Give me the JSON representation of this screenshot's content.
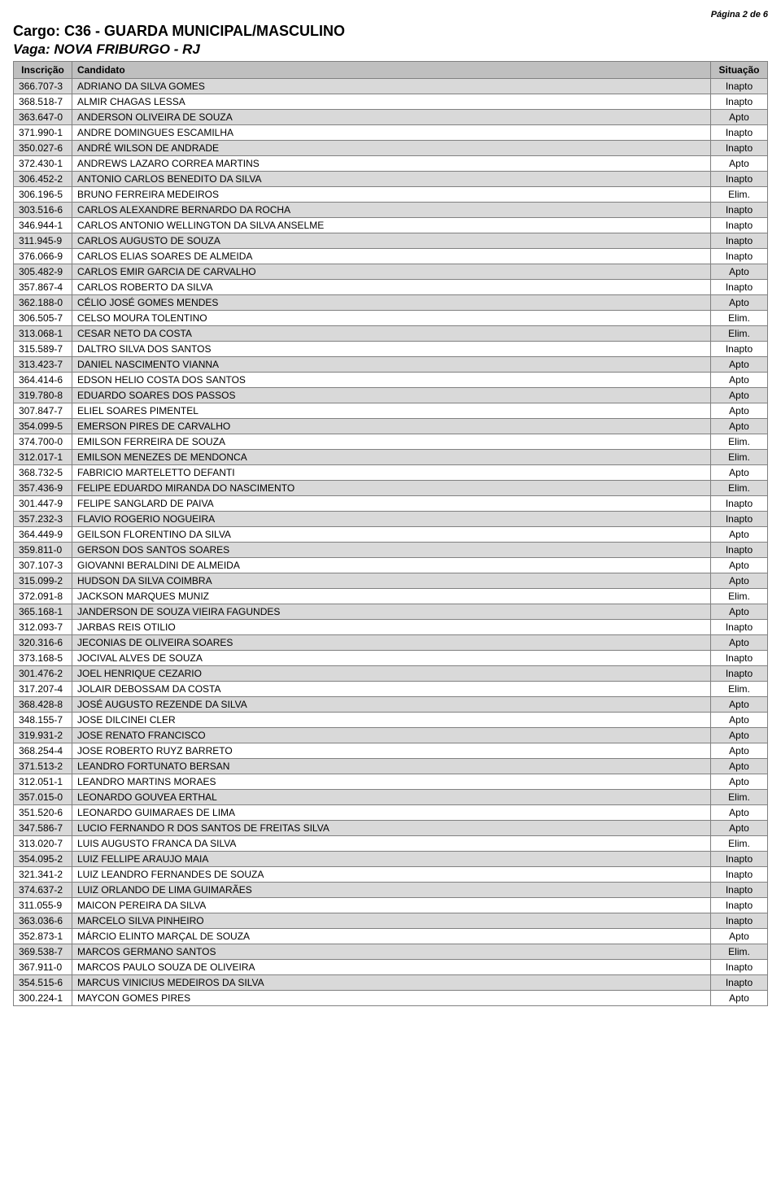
{
  "page_label": "Página 2 de 6",
  "cargo": "Cargo: C36 - GUARDA MUNICIPAL/MASCULINO",
  "vaga": "Vaga: NOVA FRIBURGO - RJ",
  "columns": {
    "inscricao": "Inscrição",
    "candidato": "Candidato",
    "situacao": "Situação"
  },
  "rows": [
    {
      "i": "366.707-3",
      "c": "ADRIANO DA SILVA GOMES",
      "s": "Inapto"
    },
    {
      "i": "368.518-7",
      "c": "ALMIR CHAGAS LESSA",
      "s": "Inapto"
    },
    {
      "i": "363.647-0",
      "c": "ANDERSON  OLIVEIRA DE SOUZA",
      "s": "Apto"
    },
    {
      "i": "371.990-1",
      "c": "ANDRE DOMINGUES ESCAMILHA",
      "s": "Inapto"
    },
    {
      "i": "350.027-6",
      "c": "ANDRÉ WILSON DE ANDRADE",
      "s": "Inapto"
    },
    {
      "i": "372.430-1",
      "c": "ANDREWS LAZARO CORREA MARTINS",
      "s": "Apto"
    },
    {
      "i": "306.452-2",
      "c": "ANTONIO CARLOS BENEDITO DA SILVA",
      "s": "Inapto"
    },
    {
      "i": "306.196-5",
      "c": "BRUNO FERREIRA MEDEIROS",
      "s": "Elim."
    },
    {
      "i": "303.516-6",
      "c": "CARLOS ALEXANDRE BERNARDO DA ROCHA",
      "s": "Inapto"
    },
    {
      "i": "346.944-1",
      "c": "CARLOS ANTONIO WELLINGTON DA SILVA ANSELME",
      "s": "Inapto"
    },
    {
      "i": "311.945-9",
      "c": "CARLOS AUGUSTO DE SOUZA",
      "s": "Inapto"
    },
    {
      "i": "376.066-9",
      "c": "CARLOS ELIAS SOARES DE ALMEIDA",
      "s": "Inapto"
    },
    {
      "i": "305.482-9",
      "c": "CARLOS EMIR GARCIA DE CARVALHO",
      "s": "Apto"
    },
    {
      "i": "357.867-4",
      "c": "CARLOS ROBERTO DA SILVA",
      "s": "Inapto"
    },
    {
      "i": "362.188-0",
      "c": "CÉLIO JOSÉ GOMES MENDES",
      "s": "Apto"
    },
    {
      "i": "306.505-7",
      "c": "CELSO MOURA TOLENTINO",
      "s": "Elim."
    },
    {
      "i": "313.068-1",
      "c": "CESAR NETO DA COSTA",
      "s": "Elim."
    },
    {
      "i": "315.589-7",
      "c": "DALTRO SILVA DOS SANTOS",
      "s": "Inapto"
    },
    {
      "i": "313.423-7",
      "c": "DANIEL NASCIMENTO VIANNA",
      "s": "Apto"
    },
    {
      "i": "364.414-6",
      "c": "EDSON HELIO COSTA DOS SANTOS",
      "s": "Apto"
    },
    {
      "i": "319.780-8",
      "c": "EDUARDO SOARES DOS PASSOS",
      "s": "Apto"
    },
    {
      "i": "307.847-7",
      "c": "ELIEL SOARES PIMENTEL",
      "s": "Apto"
    },
    {
      "i": "354.099-5",
      "c": "EMERSON PIRES DE CARVALHO",
      "s": "Apto"
    },
    {
      "i": "374.700-0",
      "c": "EMILSON FERREIRA DE SOUZA",
      "s": "Elim."
    },
    {
      "i": "312.017-1",
      "c": "EMILSON MENEZES DE MENDONCA",
      "s": "Elim."
    },
    {
      "i": "368.732-5",
      "c": "FABRICIO MARTELETTO DEFANTI",
      "s": "Apto"
    },
    {
      "i": "357.436-9",
      "c": "FELIPE EDUARDO MIRANDA DO NASCIMENTO",
      "s": "Elim."
    },
    {
      "i": "301.447-9",
      "c": "FELIPE SANGLARD DE PAIVA",
      "s": "Inapto"
    },
    {
      "i": "357.232-3",
      "c": "FLAVIO ROGERIO NOGUEIRA",
      "s": "Inapto"
    },
    {
      "i": "364.449-9",
      "c": "GEILSON FLORENTINO DA SILVA",
      "s": "Apto"
    },
    {
      "i": "359.811-0",
      "c": "GERSON DOS SANTOS SOARES",
      "s": "Inapto"
    },
    {
      "i": "307.107-3",
      "c": "GIOVANNI BERALDINI DE ALMEIDA",
      "s": "Apto"
    },
    {
      "i": "315.099-2",
      "c": "HUDSON DA SILVA COIMBRA",
      "s": "Apto"
    },
    {
      "i": "372.091-8",
      "c": "JACKSON MARQUES MUNIZ",
      "s": "Elim."
    },
    {
      "i": "365.168-1",
      "c": "JANDERSON DE SOUZA VIEIRA FAGUNDES",
      "s": "Apto"
    },
    {
      "i": "312.093-7",
      "c": "JARBAS REIS OTILIO",
      "s": "Inapto"
    },
    {
      "i": "320.316-6",
      "c": "JECONIAS DE OLIVEIRA SOARES",
      "s": "Apto"
    },
    {
      "i": "373.168-5",
      "c": "JOCIVAL ALVES DE SOUZA",
      "s": "Inapto"
    },
    {
      "i": "301.476-2",
      "c": "JOEL HENRIQUE CEZARIO",
      "s": "Inapto"
    },
    {
      "i": "317.207-4",
      "c": "JOLAIR DEBOSSAM DA COSTA",
      "s": "Elim."
    },
    {
      "i": "368.428-8",
      "c": "JOSÉ AUGUSTO REZENDE DA SILVA",
      "s": "Apto"
    },
    {
      "i": "348.155-7",
      "c": "JOSE DILCINEI CLER",
      "s": "Apto"
    },
    {
      "i": "319.931-2",
      "c": "JOSE RENATO FRANCISCO",
      "s": "Apto"
    },
    {
      "i": "368.254-4",
      "c": "JOSE ROBERTO RUYZ BARRETO",
      "s": "Apto"
    },
    {
      "i": "371.513-2",
      "c": "LEANDRO FORTUNATO BERSAN",
      "s": "Apto"
    },
    {
      "i": "312.051-1",
      "c": "LEANDRO MARTINS MORAES",
      "s": "Apto"
    },
    {
      "i": "357.015-0",
      "c": "LEONARDO GOUVEA ERTHAL",
      "s": "Elim."
    },
    {
      "i": "351.520-6",
      "c": "LEONARDO GUIMARAES DE LIMA",
      "s": "Apto"
    },
    {
      "i": "347.586-7",
      "c": "LUCIO FERNANDO R DOS SANTOS DE FREITAS SILVA",
      "s": "Apto"
    },
    {
      "i": "313.020-7",
      "c": "LUIS AUGUSTO FRANCA DA SILVA",
      "s": "Elim."
    },
    {
      "i": "354.095-2",
      "c": "LUIZ FELLIPE ARAUJO MAIA",
      "s": "Inapto"
    },
    {
      "i": "321.341-2",
      "c": "LUIZ LEANDRO FERNANDES DE SOUZA",
      "s": "Inapto"
    },
    {
      "i": "374.637-2",
      "c": "LUIZ ORLANDO DE LIMA GUIMARÃES",
      "s": "Inapto"
    },
    {
      "i": "311.055-9",
      "c": "MAICON PEREIRA DA SILVA",
      "s": "Inapto"
    },
    {
      "i": "363.036-6",
      "c": "MARCELO SILVA PINHEIRO",
      "s": "Inapto"
    },
    {
      "i": "352.873-1",
      "c": "MÁRCIO ELINTO MARÇAL DE SOUZA",
      "s": "Apto"
    },
    {
      "i": "369.538-7",
      "c": "MARCOS GERMANO SANTOS",
      "s": "Elim."
    },
    {
      "i": "367.911-0",
      "c": "MARCOS PAULO SOUZA DE OLIVEIRA",
      "s": "Inapto"
    },
    {
      "i": "354.515-6",
      "c": "MARCUS VINICIUS MEDEIROS DA SILVA",
      "s": "Inapto"
    },
    {
      "i": "300.224-1",
      "c": "MAYCON GOMES PIRES",
      "s": "Apto"
    }
  ],
  "style": {
    "header_bg": "#bfbfbf",
    "row_odd_bg": "#d9d9d9",
    "row_even_bg": "#ffffff",
    "border_color": "#808080",
    "body_font_size": 12,
    "title_font_size": 18,
    "subtitle_font_size": 17,
    "pagenum_font_size": 11,
    "col_widths": {
      "inscricao": 72,
      "situacao": 70
    }
  }
}
